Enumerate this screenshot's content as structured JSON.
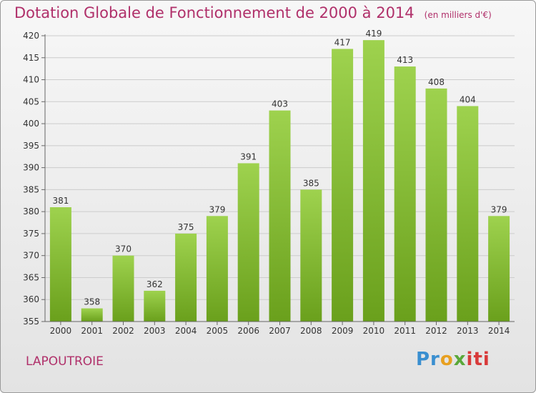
{
  "title": "Dotation Globale de Fonctionnement de 2000 à 2014",
  "subtitle": "(en milliers d'€)",
  "commune": "LAPOUTROIE",
  "brand": {
    "part1": "Pr",
    "part2": "o",
    "part3": "x",
    "part4": "iti"
  },
  "colors": {
    "accent": "#b0306a",
    "bar_top": "#9ed24e",
    "bar_bottom": "#6aa01c",
    "grid": "#cccccc"
  },
  "chart_data": {
    "type": "bar",
    "categories": [
      "2000",
      "2001",
      "2002",
      "2003",
      "2004",
      "2005",
      "2006",
      "2007",
      "2008",
      "2009",
      "2010",
      "2011",
      "2012",
      "2013",
      "2014"
    ],
    "values": [
      381,
      358,
      370,
      362,
      375,
      379,
      391,
      403,
      385,
      417,
      419,
      413,
      408,
      404,
      379
    ],
    "ylim": [
      355,
      420
    ],
    "yticks": [
      355,
      360,
      365,
      370,
      375,
      380,
      385,
      390,
      395,
      400,
      405,
      410,
      415,
      420
    ],
    "grid": true,
    "xlabel": "",
    "ylabel": ""
  }
}
